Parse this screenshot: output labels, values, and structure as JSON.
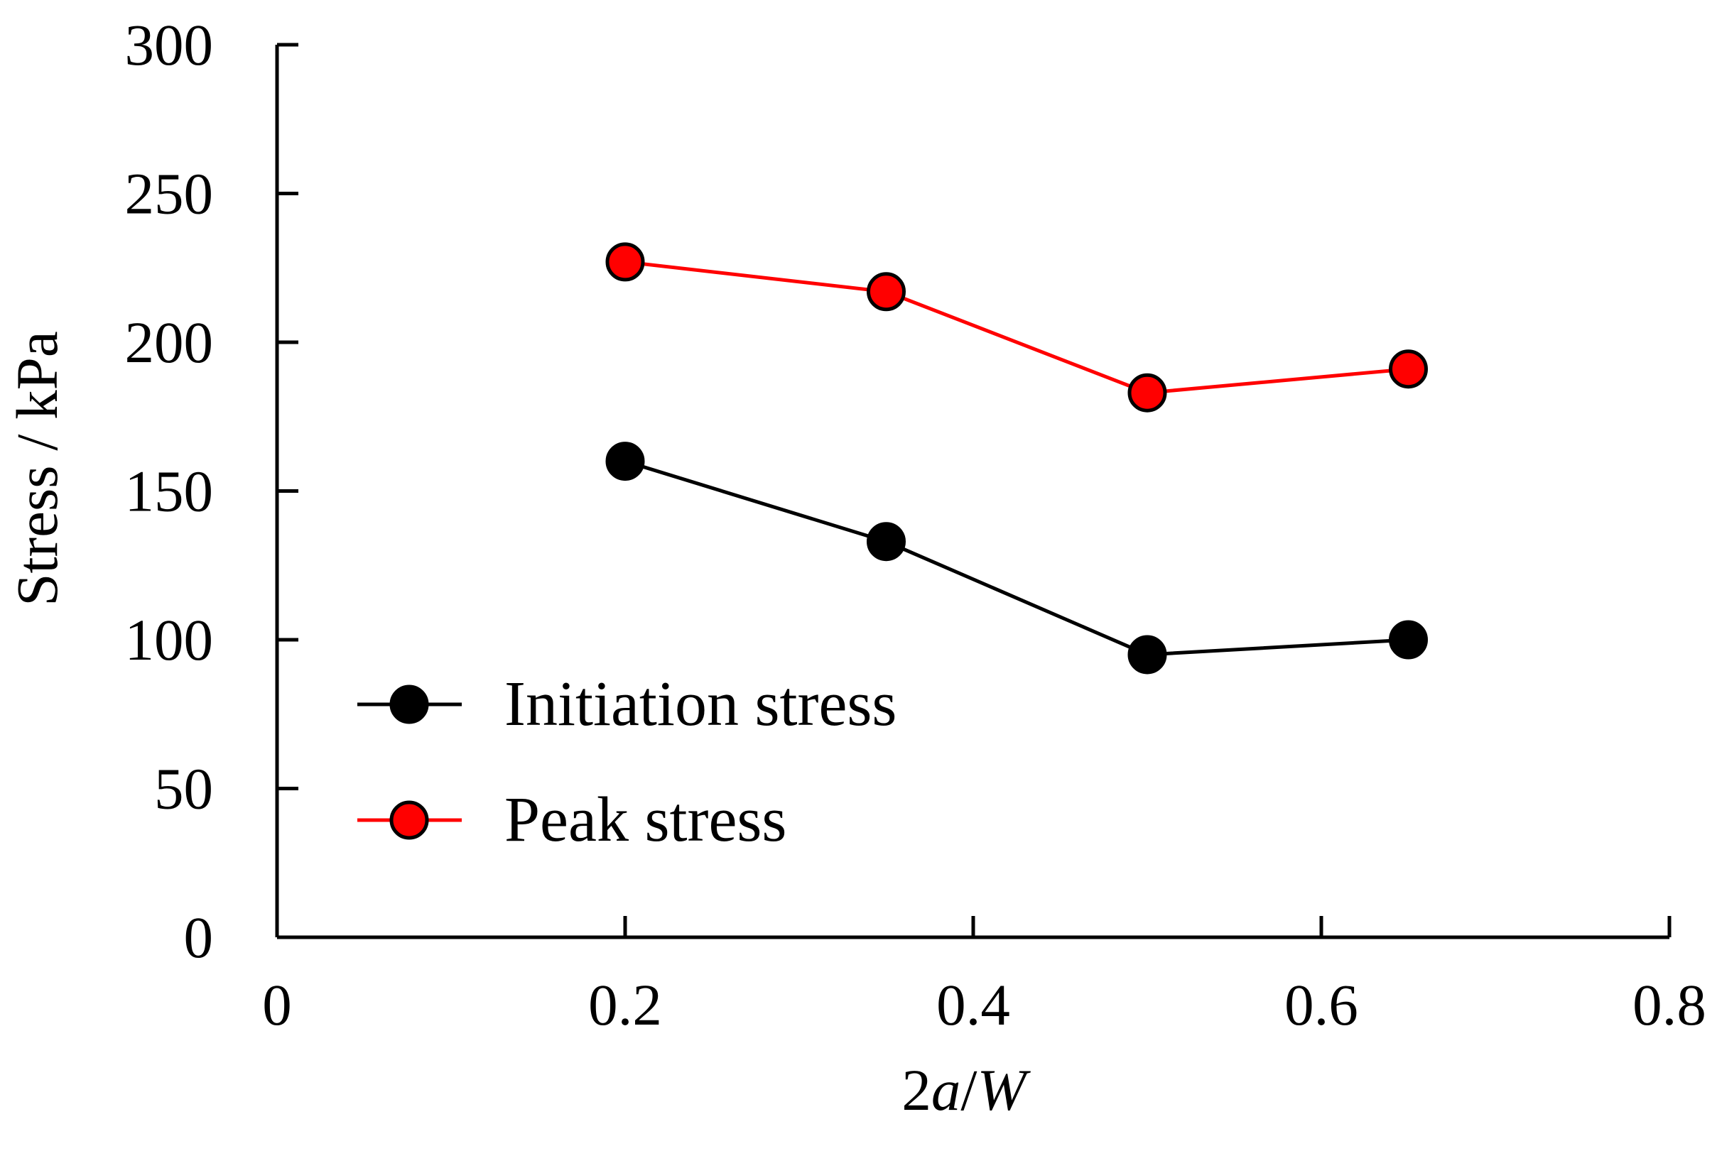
{
  "chart_data": {
    "type": "line",
    "title": "",
    "xlabel": {
      "prefix": "2",
      "italic_var": "a",
      "suffix": "/",
      "italic_var2": "W"
    },
    "ylabel": "Stress / kPa",
    "xlim": [
      0,
      0.8
    ],
    "ylim": [
      0,
      300
    ],
    "x_ticks": [
      0,
      0.2,
      0.4,
      0.6,
      0.8
    ],
    "x_tick_labels": [
      "0",
      "0.2",
      "0.4",
      "0.6",
      "0.8"
    ],
    "y_ticks": [
      0,
      50,
      100,
      150,
      200,
      250,
      300
    ],
    "y_tick_labels": [
      "0",
      "50",
      "100",
      "150",
      "200",
      "250",
      "300"
    ],
    "grid": false,
    "legend_position": "lower-left",
    "series": [
      {
        "name": "Initiation stress",
        "color": "#000000",
        "marker_fill": "#000000",
        "x": [
          0.2,
          0.35,
          0.5,
          0.65
        ],
        "y": [
          160,
          133,
          95,
          100
        ]
      },
      {
        "name": "Peak stress",
        "color": "#ff0000",
        "marker_fill": "#ff0000",
        "x": [
          0.2,
          0.35,
          0.5,
          0.65
        ],
        "y": [
          227,
          217,
          183,
          191
        ]
      }
    ]
  }
}
